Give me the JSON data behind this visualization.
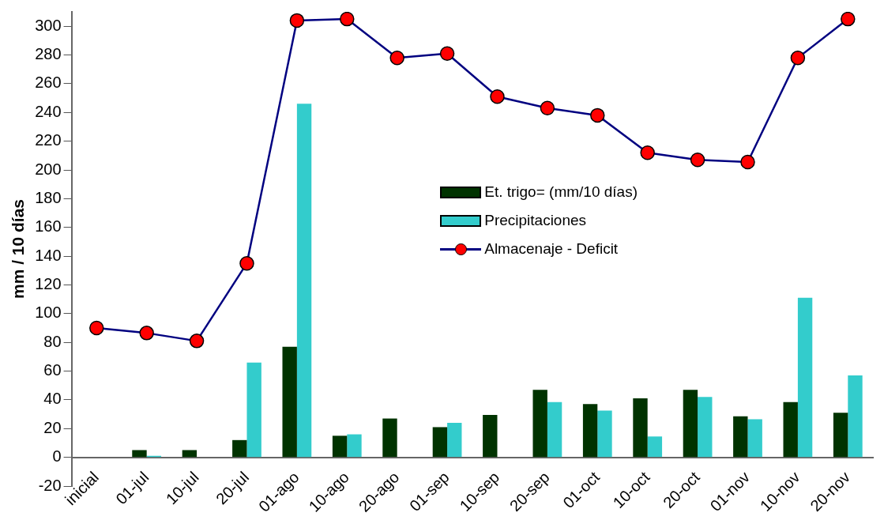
{
  "chart_data": {
    "type": "bar",
    "ylabel": "mm / 10 días",
    "categories": [
      "inicial",
      "01-jul",
      "10-jul",
      "20-jul",
      "01-ago",
      "10-ago",
      "20-ago",
      "01-sep",
      "10-sep",
      "20-sep",
      "01-oct",
      "10-oct",
      "20-oct",
      "01-nov",
      "10-nov",
      "20-nov"
    ],
    "series": [
      {
        "name": "Et. trigo= (mm/10 días)",
        "color": "#003300",
        "values": [
          null,
          5,
          5,
          12,
          77,
          15,
          27,
          21,
          29.5,
          47,
          37,
          41,
          47,
          28.5,
          38.5,
          31
        ]
      },
      {
        "name": "Precipitaciones",
        "color": "#33cccc",
        "values": [
          null,
          1,
          null,
          66,
          246,
          16,
          null,
          24,
          null,
          38.5,
          32.5,
          14.5,
          42,
          26.5,
          111,
          57
        ]
      },
      {
        "name": "Almacenaje - Deficit",
        "type": "line",
        "color": "#000080",
        "marker": "circle",
        "values": [
          90,
          86.5,
          81,
          135,
          304,
          305,
          278,
          281,
          251,
          243,
          238,
          212,
          207,
          205.5,
          278,
          305
        ]
      }
    ],
    "ylim": [
      -20,
      310
    ],
    "yticks": [
      -20,
      0,
      20,
      40,
      60,
      80,
      100,
      120,
      140,
      160,
      180,
      200,
      220,
      240,
      260,
      280,
      300
    ],
    "grid": false,
    "legend": "center"
  }
}
